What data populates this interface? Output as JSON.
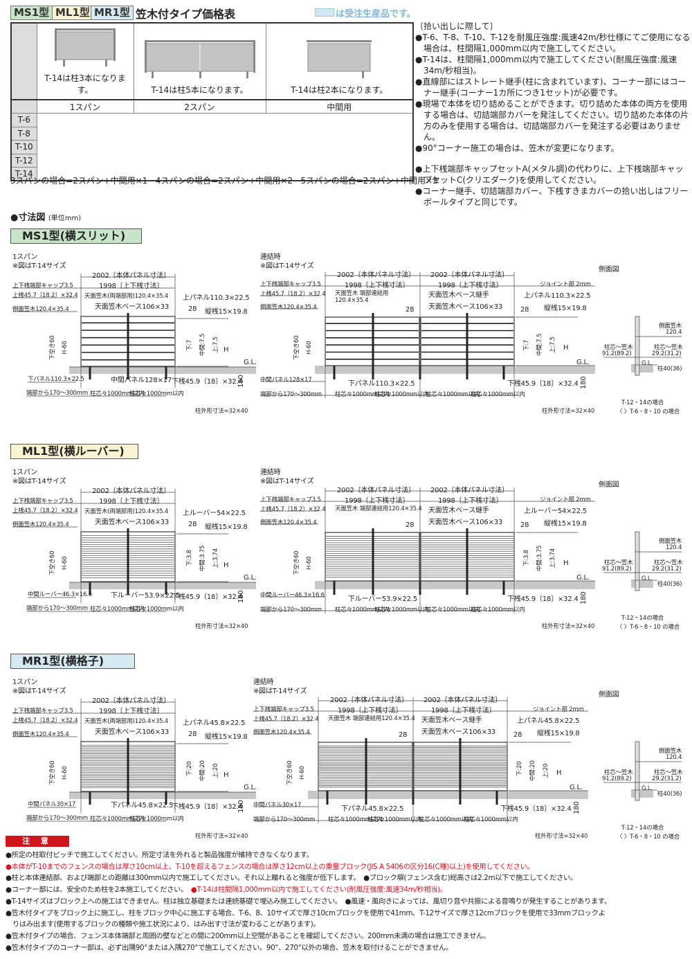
{
  "header": {
    "tabs": [
      {
        "label": "MS1型",
        "color": "#c9e5c9"
      },
      {
        "label": "ML1型",
        "color": "#fbf4d2"
      },
      {
        "label": "MR1型",
        "color": "#d6eaf4"
      }
    ],
    "title": "笠木付タイプ価格表",
    "legend_text": "は受注生産品です。",
    "legend_color": "#d2e9f5"
  },
  "price_table": {
    "columns": [
      {
        "label": "1スパン",
        "note": "T-14は柱3本になります。"
      },
      {
        "label": "2スパン",
        "note": "T-14は柱5本になります。"
      },
      {
        "label": "中間用",
        "note": "T-14は柱2本になります。"
      }
    ],
    "rows": [
      "T-6",
      "T-8",
      "T-10",
      "T-12",
      "T-14"
    ],
    "footer": [
      "3スパンの場合=2スパン+中間用×1",
      "4スパンの場合=2スパン+中間用×2",
      "5スパンの場合=2スパン+中間用×3"
    ]
  },
  "notes": {
    "heading": "〔拾い出しに際して〕",
    "items": [
      "●T-6、T-8、T-10、T-12を耐風圧強度:風速42m/秒仕様にてご使用になる場合は、柱間隔1,000mm以内で施工してください。",
      "●T-14は、柱間隔1,000mm以内で施工してください(耐風圧強度:風速34m/秒相当)。",
      "●直線部にはストレート継手(柱に含まれています)、コーナー部にはコーナー継手(コーナー1カ所につき1セット)が必要です。",
      "●現場で本体を切り詰めることができます。切り詰めた本体の両方を使用する場合は、切詰端部カバーを発注してください。切り詰めた本体の片方のみを使用する場合は、切詰端部カバーを発注する必要はありません。",
      "●90°コーナー施工の場合は、笠木が変更になります。",
      "●上下桟端部キャップセットA(メタル調)の代わりに、上下桟端部キャップセットC(クリエダーク)を使用してください。",
      "●コーナー継手、切詰端部カバー、下桟すきまカバーの拾い出しはフリーボールタイプと同じです。"
    ]
  },
  "dimension_heading": {
    "title": "●寸法図",
    "unit": "(単位mm)"
  },
  "sections": [
    {
      "title": "MS1型(横スリット)",
      "color": "#c9e5c9",
      "single": {
        "caption": "1スパン",
        "size_note": "※図はT-14サイズ",
        "labels": {
          "body": "2002〔本体パネル寸法〕",
          "rail": "1998〔上下桟寸法〕",
          "cap": "上下桟端部キャップ3.5",
          "top_rail": "上桟45.7〔18.2〕×32.4",
          "side_kasagi": "側面笠木120.4×35.4",
          "top_kasagi": "天面笠木(両端部用)120.4×35.4",
          "kasagi_base": "天面笠木ベース106×33",
          "top_panel": "上パネル110.3×22.5",
          "pitch": "28",
          "vertical_bar": "縦桟15×19.8",
          "bottom_gap": "下空き60",
          "h60": "H-60",
          "dim_bottom": "下:7",
          "dim_mid": "中間:7.5",
          "dim_top": "上:7.5",
          "h": "H",
          "gl": "G.L.",
          "lower_left": "下パネル110.3×22.5",
          "lower_mid": "中間パネル128×17",
          "bottom_rail": "下桟45.9〔18〕×32.4",
          "depth": "180",
          "end_distance": "端部から170〜300mm",
          "post_pitch": "柱芯々1000mm以内",
          "post_size": "柱外形寸法=32×40"
        }
      },
      "joined": {
        "caption": "連結時",
        "size_note": "※図はT-14サイズ",
        "labels": {
          "body": "2002〔本体パネル寸法〕",
          "rail": "1998〔上下桟寸法〕",
          "cap": "上下桟端部キャップ3.5",
          "joint": "ジョイント部 2mm",
          "top_rail": "上桟45.7〔18.2〕×32.4",
          "top_kasagi": "天面笠木 端部連結用",
          "top_kasagi_size": "120.4×35.4",
          "base_joint": "天面笠木ベース継手",
          "top_panel": "上パネル110.3×22.5",
          "side_kasagi": "側面笠木120.4×35.4",
          "kasagi_base": "天面笠木ベース106×33",
          "pitch": "28",
          "vertical_bar": "縦桟15×19.8",
          "bottom_gap": "下空き60",
          "h60": "H-60",
          "dim_bottom": "下:7",
          "dim_mid": "中間:7.5",
          "dim_top": "上:7.5",
          "h": "H",
          "gl": "G.L.",
          "lower_left": "中間パネル128×17",
          "lower_mid": "下パネル110.3×22.5",
          "bottom_rail": "下桟45.9〔18〕×32.4",
          "depth": "180",
          "end_distance": "端部から170〜300mm",
          "post_pitch": "柱芯々1000mm以内",
          "post_size": "柱外形寸法=32×40"
        }
      },
      "side": {
        "title": "側面図",
        "side_kasagi": "側面笠木",
        "side_kasagi_size": "120.4",
        "center_left": "柱芯〜笠木",
        "center_left_value": "91.2(89.2)",
        "center_right": "柱芯〜笠木",
        "center_right_value": "29.2(31.2)",
        "gl": "G.L.",
        "post": "柱40(36)",
        "note1": "T-12・14の場合",
        "note2": "〈 〉T-6・8・10 の場合"
      }
    },
    {
      "title": "ML1型(横ルーバー)",
      "color": "#fbf4d2",
      "single": {
        "caption": "1スパン",
        "size_note": "※図はT-14サイズ",
        "labels": {
          "body": "2002〔本体パネル寸法〕",
          "rail": "1998〔上下桟寸法〕",
          "cap": "上下桟端部キャップ3.5",
          "top_rail": "上桟45.7〔18.2〕×32.4",
          "side_kasagi": "側面笠木120.4×35.4",
          "top_kasagi": "天面笠木(両端部用)120.4×35.4",
          "kasagi_base": "天面笠木ベース106×33",
          "top_panel": "上ルーバー54×22.5",
          "pitch": "28",
          "vertical_bar": "縦桟15×19.8",
          "bottom_gap": "下空き60",
          "h60": "H-60",
          "dim_bottom": "下:3.8",
          "dim_mid": "中間:3.75",
          "dim_top": "上:3.74",
          "h": "H",
          "gl": "G.L.",
          "lower_left": "中間ルーバー46.3×16.6",
          "lower_mid": "下ルーバー53.9×22.5",
          "bottom_rail": "下桟45.9〔18〕×32.4",
          "depth": "180",
          "end_distance": "端部から170〜300mm",
          "post_pitch": "柱芯々1000mm以内",
          "post_size": "柱外形寸法=32×40"
        }
      },
      "joined": {
        "caption": "連結時",
        "size_note": "※図はT-14サイズ",
        "labels": {
          "body": "2002〔本体パネル寸法〕",
          "rail": "1998〔上下桟寸法〕",
          "cap": "上下桟端部キャップ3.5",
          "joint": "ジョイント部 2mm",
          "top_rail": "上桟45.7〔18.2〕×32.4",
          "top_kasagi": "天面笠木 端部連結用120.4×35.4",
          "top_kasagi_size": "",
          "base_joint": "天面笠木ベース継手",
          "top_panel": "上ルーバー54×22.5",
          "side_kasagi": "側面笠木120.4×35.4",
          "kasagi_base": "天面笠木ベース106×33",
          "pitch": "28",
          "vertical_bar": "縦桟15×19.8",
          "bottom_gap": "下空き60",
          "h60": "H-60",
          "dim_bottom": "下:3.8",
          "dim_mid": "中間:3.75",
          "dim_top": "上:3.74",
          "h": "H",
          "gl": "G.L.",
          "lower_left": "中間ルーバー46.3×16.6",
          "lower_mid": "下ルーバー53.9×22.5",
          "bottom_rail": "下桟45.9〔18〕×32.4",
          "depth": "180",
          "end_distance": "端部から170〜300mm",
          "post_pitch": "柱芯々1000mm以内",
          "post_size": "柱外形寸法=32×40"
        }
      },
      "side": {
        "title": "側面図",
        "side_kasagi": "側面笠木",
        "side_kasagi_size": "120.4",
        "center_left": "柱芯〜笠木",
        "center_left_value": "91.2(89.2)",
        "center_right": "柱芯〜笠木",
        "center_right_value": "29.2(31.2)",
        "gl": "G.L.",
        "post": "柱40(36)",
        "note1": "T-12・14の場合",
        "note2": "〈 〉T-6・8・10 の場合"
      }
    },
    {
      "title": "MR1型(横格子)",
      "color": "#d6eaf4",
      "single": {
        "caption": "1スパン",
        "size_note": "※図はT-14サイズ",
        "labels": {
          "body": "2002〔本体パネル寸法〕",
          "rail": "1998〔上下桟寸法〕",
          "cap": "上下桟端部キャップ3.5",
          "top_rail": "上桟45.7〔18.2〕×32.4",
          "side_kasagi": "側面笠木120.4×35.4",
          "top_kasagi": "天面笠木(両端部用)120.4×35.4",
          "kasagi_base": "天面笠木ベース106×33",
          "top_panel": "上パネル45.8×22.5",
          "pitch": "28",
          "vertical_bar": "縦桟15×19.8",
          "bottom_gap": "下空き60",
          "h60": "H-60",
          "dim_bottom": "下:20",
          "dim_mid": "中間:20",
          "dim_top": "上:20",
          "h": "H",
          "gl": "G.L.",
          "lower_left": "中間パネル30×17",
          "lower_mid": "下パネル45.8×22.5",
          "bottom_rail": "下桟45.9〔18〕×32.4",
          "depth": "180",
          "end_distance": "端部から170〜300mm",
          "post_pitch": "柱芯々1000mm以内",
          "post_size": "柱外形寸法=32×40"
        }
      },
      "joined": {
        "caption": "連結時",
        "size_note": "※図はT-14サイズ",
        "labels": {
          "body": "2002〔本体パネル寸法〕",
          "rail": "1998〔上下桟寸法〕",
          "cap": "上下桟端部キャップ3.5",
          "joint": "ジョイント部 2mm",
          "top_rail": "上桟45.7〔18.2〕×32.4",
          "top_kasagi": "天面笠木 端部連結用120.4×35.4",
          "top_kasagi_size": "",
          "base_joint": "天面笠木ベース継手",
          "top_panel": "上パネル45.8×22.5",
          "side_kasagi": "側面笠木120.4×35.4",
          "kasagi_base": "天面笠木ベース106×33",
          "pitch": "28",
          "vertical_bar": "縦桟15×19.8",
          "bottom_gap": "下空き60",
          "h60": "H-60",
          "dim_bottom": "下:20",
          "dim_mid": "中間:20",
          "dim_top": "上:20",
          "h": "H",
          "gl": "G.L.",
          "lower_left": "中間パネル30×17",
          "lower_mid": "下パネル45.8×22.5",
          "bottom_rail": "下桟45.9〔18〕×32.4",
          "depth": "180",
          "end_distance": "端部から170〜300mm",
          "post_pitch": "柱芯々1000mm以内",
          "post_size": "柱外形寸法=32×40"
        }
      },
      "side": {
        "title": "側面図",
        "side_kasagi": "側面笠木",
        "side_kasagi_size": "120.4",
        "center_left": "柱芯〜笠木",
        "center_left_value": "91.2(89.2)",
        "center_right": "柱芯〜笠木",
        "center_right_value": "29.2(31.2)",
        "gl": "G.L.",
        "post": "柱40(36)",
        "note1": "T-12・14の場合",
        "note2": "〈 〉T-6・8・10 の場合"
      }
    }
  ],
  "caution": {
    "title": "注 意",
    "accent_color": "#d0141c",
    "lines": [
      [
        {
          "text": "●所定の柱取付ピッチで施工してください。所定寸法を外れると製品強度が維持できなくなります。",
          "red": false
        }
      ],
      [
        {
          "text": "●本体がT-10までのフェンスの場合は厚さ10cm以上、T-10を超えるフェンスの場合は厚さ12cm以上の重量ブロック(JIS A 5406の区分16(C種)以上)を使用してください。",
          "red": true
        }
      ],
      [
        {
          "text": "●柱と本体連結部、および端部との距離は300mm以内で施工してください。それ以上離れると強度が低下します。　",
          "red": false
        },
        {
          "text": "●ブロック塀(フェンス含む)総高さは2.2m以下で施工してください。",
          "red": false
        }
      ],
      [
        {
          "text": "●コーナー部には、安全のため柱を2本施工してください。　",
          "red": false
        },
        {
          "text": "●T-14は柱間隔1,000mm以内で施工してください(耐風圧強度:風速34m/秒相当)。",
          "red": true
        }
      ],
      [
        {
          "text": "●T-14サイズはブロック上への施工はできません。柱は独立基礎または連続基礎で埋込み施工してください。　",
          "red": false
        },
        {
          "text": "●風速・風向きによっては、風切り音や共振による音鳴りが発生することがあります。",
          "red": false
        }
      ],
      [
        {
          "text": "●笠木付タイプをブロック上に施工し、柱をブロック中心に施工する場合、T-6、8、10サイズで厚さ10cmブロックを使用で41mm、T-12サイズで厚さ12cmブロックを使用で33mmブロックよ",
          "red": false
        }
      ],
      [
        {
          "text": "　りはみ出ます(使用するブロックの種類や施工状況により、はみ出す寸法が変わることがあります)。",
          "red": false
        }
      ],
      [
        {
          "text": "●笠木付タイプの場合、フェンス本体端部と周囲の壁などとの間に200mm以上空間があることを確認してください。200mm未満の場合は施工できません。",
          "red": false
        }
      ],
      [
        {
          "text": "●笠木付タイプのコーナー部は、必ず出隅90°または入隅270°で施工してください。90°、270°以外の場合、笠木を取付けることができません。",
          "red": false
        }
      ]
    ]
  }
}
